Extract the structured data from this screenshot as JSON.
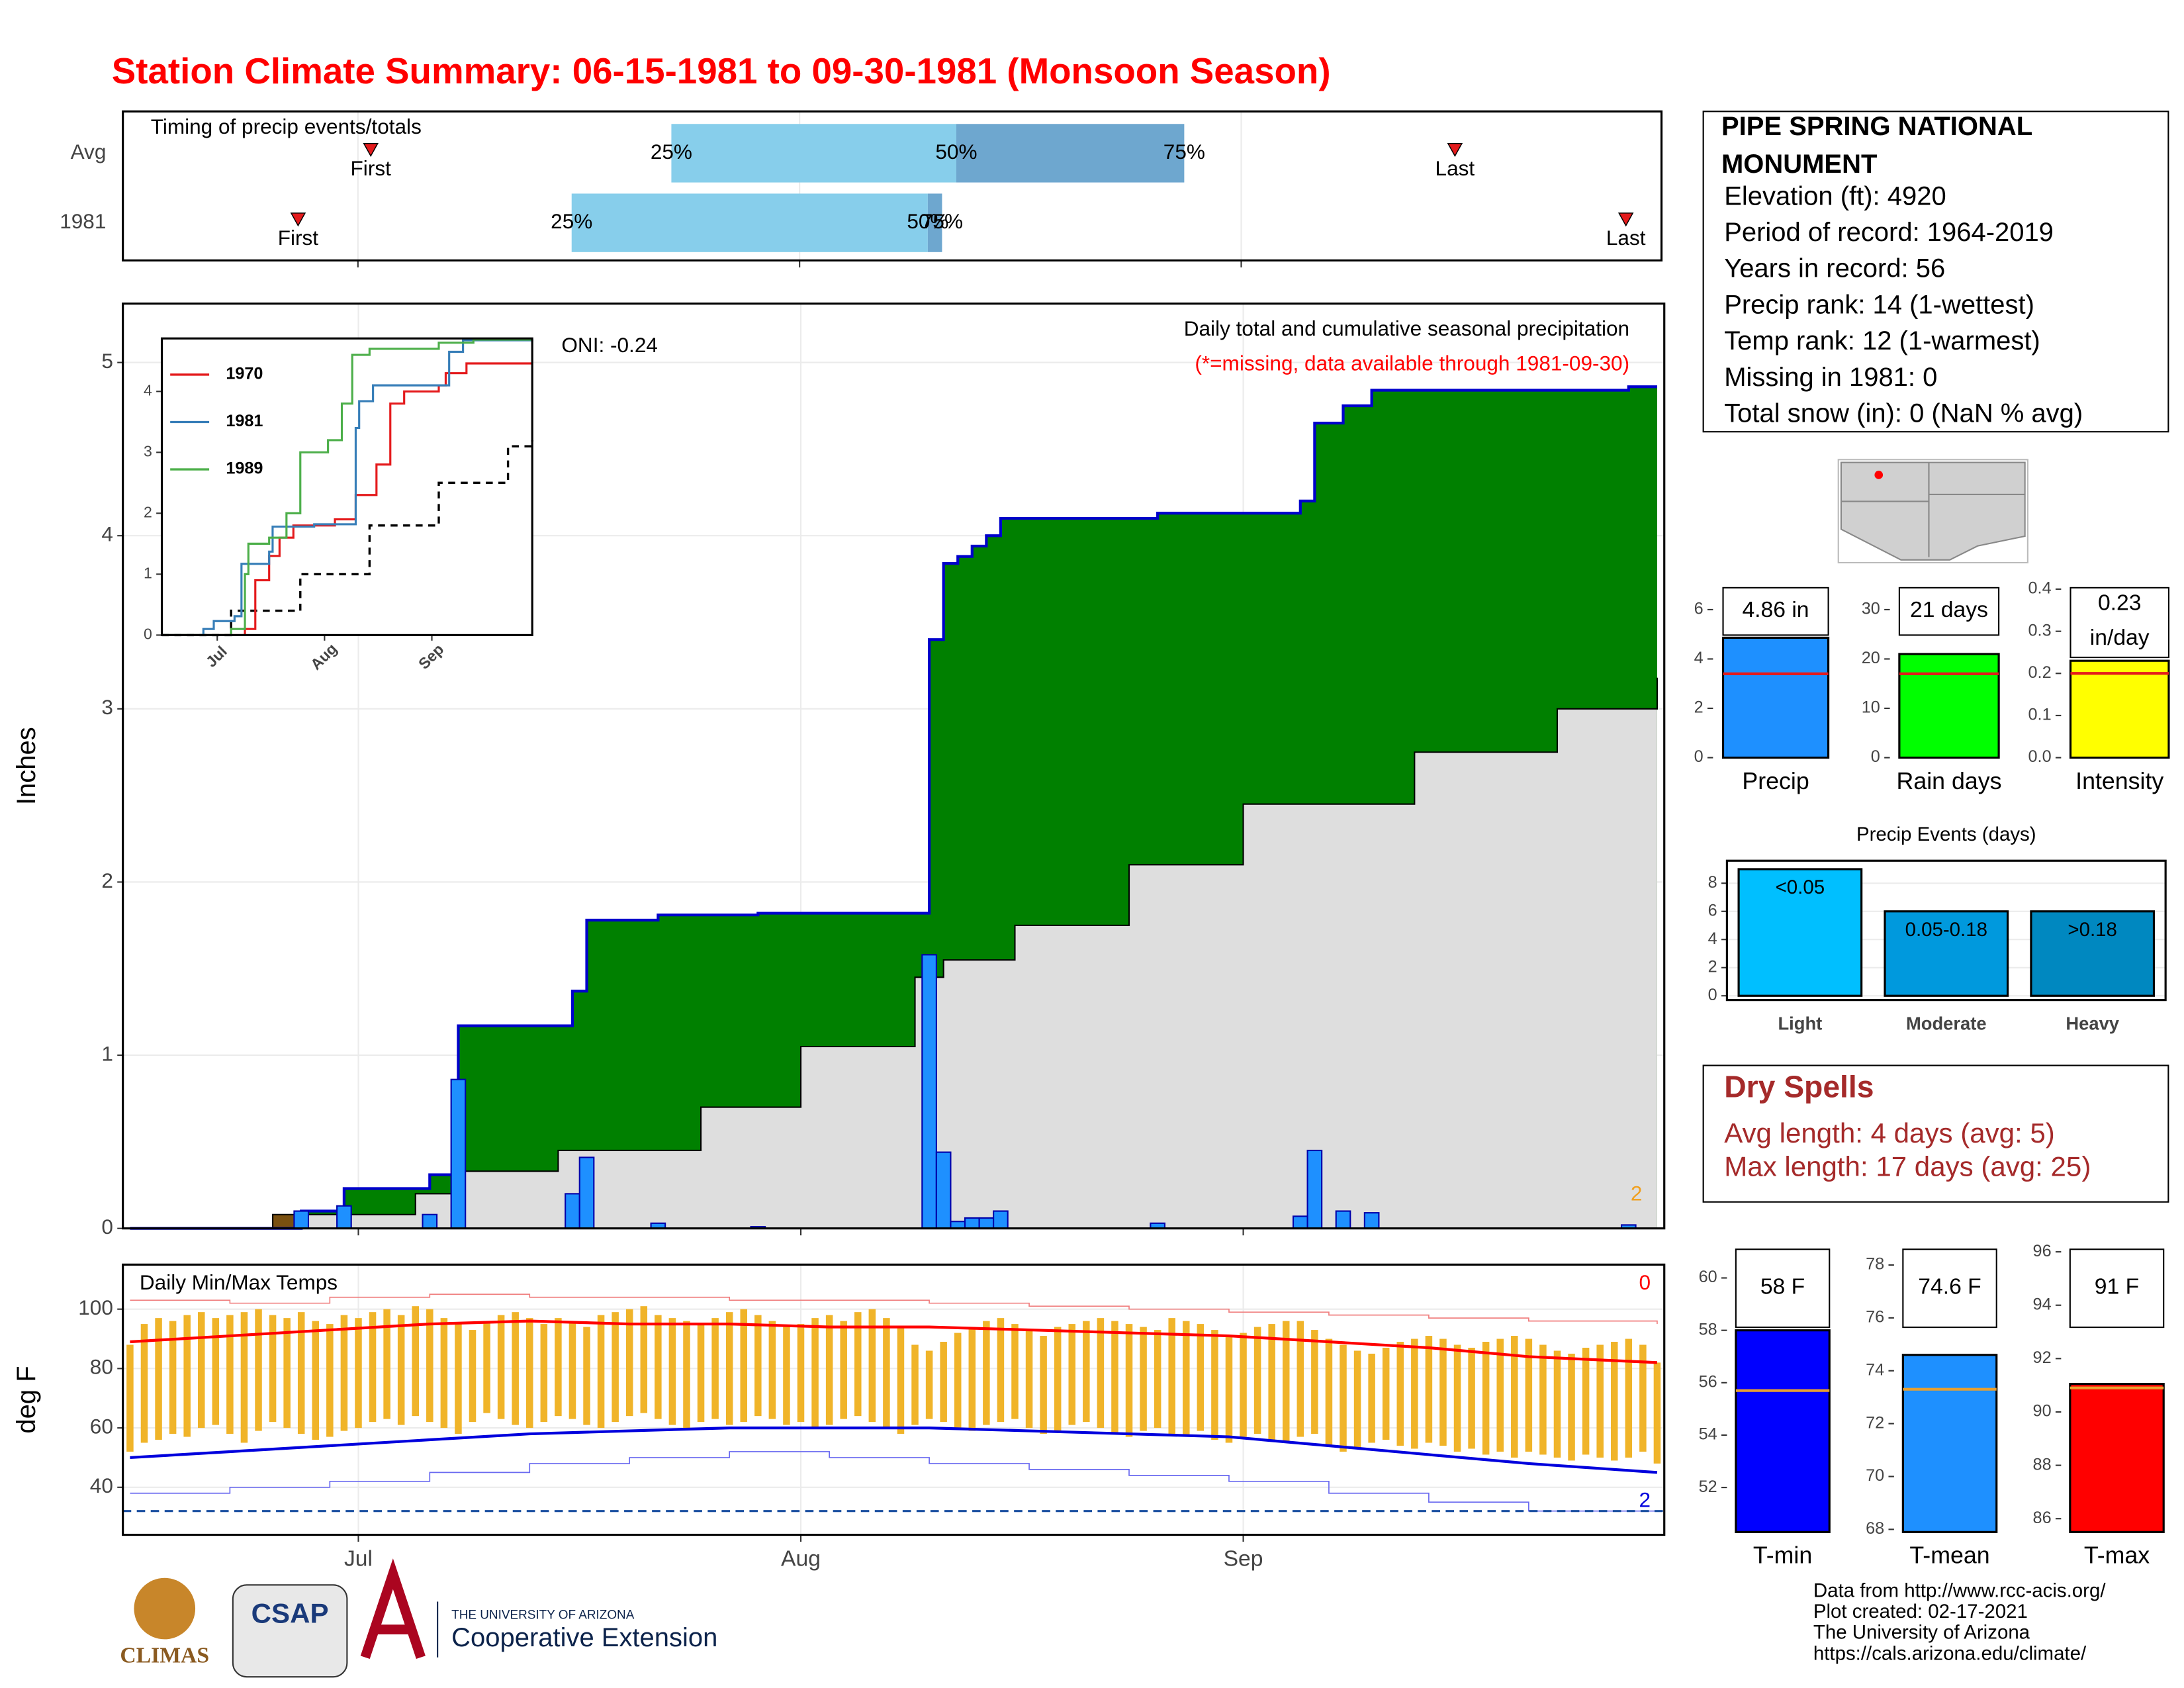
{
  "title": "Station Climate Summary: 06-15-1981 to 09-30-1981 (Monsoon Season)",
  "info": {
    "station": "PIPE SPRING NATIONAL MONUMENT",
    "lines": [
      "Elevation (ft): 4920",
      "Period of record: 1964-2019",
      "Years in record: 56",
      "Precip rank: 14 (1-wettest)",
      "Temp rank: 12 (1-warmest)",
      "Missing in 1981: 0",
      "Total snow (in): 0 (NaN % avg)"
    ]
  },
  "dry_spells": {
    "title": "Dry Spells",
    "lines": [
      "Avg length: 4 days (avg: 5)",
      "Max length: 17 days (avg: 25)"
    ]
  },
  "footer": [
    "Data from http://www.rcc-acis.org/",
    "Plot created: 02-17-2021",
    "The University of Arizona",
    "https://cals.arizona.edu/climate/"
  ],
  "logos": [
    "CLIMAS",
    "CSAP",
    "THE UNIVERSITY OF ARIZONA",
    "Cooperative Extension"
  ],
  "chart_data": [
    {
      "type": "timing",
      "title": "Timing of precip events/totals",
      "categories": [
        "Avg",
        "1981"
      ],
      "first": [
        16.9,
        11.8
      ],
      "q25": [
        38,
        31
      ],
      "q50": [
        58,
        56
      ],
      "q75": [
        74,
        57
      ],
      "last": [
        93,
        105
      ],
      "first_label": "First",
      "last_label": "Last",
      "quantile_labels": [
        "25%",
        "50%",
        "75%"
      ],
      "xlim": [
        -0.5,
        107.5
      ],
      "xgrid": [
        16,
        47,
        78
      ],
      "colors": [
        "#87ceeb",
        "#6ea7cf"
      ]
    },
    {
      "type": "area",
      "ylabel": "Inches",
      "note": "Daily total and cumulative seasonal precipitation",
      "missing_note": "(*=missing, data available through 1981-09-30)",
      "oni": "ONI: -0.24",
      "record_count": 2,
      "xlim": [
        -0.5,
        107.5
      ],
      "ylim": [
        0,
        5.34
      ],
      "yticks": [
        0,
        1,
        2,
        3,
        4,
        5
      ],
      "xgrid": [
        16,
        47,
        78
      ],
      "grid": true,
      "daily": {
        "x": [
          12,
          15,
          21,
          23,
          31,
          32,
          37,
          44,
          56,
          57,
          58,
          59,
          60,
          61,
          72,
          82,
          83,
          85,
          87,
          105
        ],
        "values": [
          0.1,
          0.13,
          0.08,
          0.86,
          0.2,
          0.41,
          0.03,
          0.01,
          1.58,
          0.44,
          0.04,
          0.06,
          0.06,
          0.1,
          0.03,
          0.07,
          0.45,
          0.1,
          0.09,
          0.02
        ],
        "color": "#1e90ff"
      },
      "cumulative": {
        "x": [
          0,
          12,
          15,
          21,
          23,
          31,
          32,
          37,
          44,
          56,
          57,
          58,
          59,
          60,
          61,
          72,
          82,
          83,
          85,
          87,
          105,
          107
        ],
        "values": [
          0,
          0.1,
          0.23,
          0.31,
          1.17,
          1.37,
          1.78,
          1.81,
          1.82,
          3.4,
          3.84,
          3.88,
          3.94,
          4.0,
          4.1,
          4.13,
          4.2,
          4.65,
          4.75,
          4.84,
          4.86,
          4.86
        ],
        "color": "#0000cc"
      },
      "average": {
        "x": [
          0,
          10,
          20,
          23,
          30,
          40,
          47,
          55,
          57,
          62,
          70,
          78,
          90,
          100,
          107
        ],
        "values": [
          0,
          0.08,
          0.2,
          0.33,
          0.45,
          0.7,
          1.05,
          1.45,
          1.55,
          1.75,
          2.1,
          2.45,
          2.75,
          3.0,
          3.18
        ]
      },
      "above_color": "#008000",
      "below_color": "#7a5010",
      "average_fill": "#dedede"
    },
    {
      "type": "line",
      "xlim": [
        0,
        107
      ],
      "ylim": [
        0,
        4.87
      ],
      "yticks": [
        0,
        1,
        2,
        3,
        4
      ],
      "xticks": [
        {
          "value": 16,
          "label": "Jul"
        },
        {
          "value": 47,
          "label": "Aug"
        },
        {
          "value": 78,
          "label": "Sep"
        }
      ],
      "series": [
        {
          "name": "1970",
          "color": "#e41a1c",
          "x": [
            0,
            24,
            27,
            31,
            34,
            38,
            50,
            56,
            62,
            66,
            70,
            80,
            82,
            88,
            107
          ],
          "values": [
            0,
            0.1,
            0.9,
            1.3,
            1.6,
            1.8,
            1.9,
            2.3,
            2.8,
            3.8,
            4.0,
            4.1,
            4.3,
            4.46,
            4.46
          ]
        },
        {
          "name": "1981",
          "color": "#377eb8",
          "x": [
            0,
            12,
            15,
            21,
            23,
            31,
            32,
            44,
            56,
            57,
            61,
            83,
            87,
            107
          ],
          "values": [
            0,
            0.1,
            0.23,
            0.31,
            1.17,
            1.37,
            1.78,
            1.82,
            3.4,
            3.84,
            4.1,
            4.65,
            4.84,
            4.86
          ]
        },
        {
          "name": "1989",
          "color": "#4daf4a",
          "x": [
            0,
            20,
            24,
            25,
            31,
            36,
            40,
            48,
            52,
            55,
            60,
            80,
            90,
            107
          ],
          "values": [
            0,
            0.1,
            1.0,
            1.5,
            1.6,
            2.0,
            3.0,
            3.2,
            3.8,
            4.6,
            4.7,
            4.8,
            4.85,
            4.85
          ]
        }
      ],
      "average": {
        "x": [
          0,
          20,
          40,
          60,
          80,
          100,
          107
        ],
        "values": [
          0,
          0.4,
          1.0,
          1.8,
          2.5,
          3.1,
          3.2
        ]
      }
    },
    {
      "type": "bar",
      "categories": [
        "Precip"
      ],
      "values": [
        4.86
      ],
      "value_labels": [
        "4.86 in"
      ],
      "average": [
        3.4
      ],
      "average_color": "#e41a1c",
      "color": "#1e90ff",
      "ylim": [
        0,
        7
      ],
      "yticks": [
        0,
        2,
        4,
        6
      ]
    },
    {
      "type": "bar",
      "categories": [
        "Rain days"
      ],
      "values": [
        21
      ],
      "value_labels": [
        "21 days"
      ],
      "average": [
        17
      ],
      "average_color": "#e41a1c",
      "color": "#00ff00",
      "ylim": [
        0,
        35
      ],
      "yticks": [
        0,
        10,
        20,
        30
      ]
    },
    {
      "type": "bar",
      "categories": [
        "Intensity"
      ],
      "values": [
        0.23
      ],
      "value_labels": [
        "0.23 in/day"
      ],
      "average": [
        0.2
      ],
      "average_color": "#e41a1c",
      "color": "#ffff00",
      "ylim": [
        0,
        0.41
      ],
      "yticks": [
        {
          "value": 0,
          "label": "0.0"
        },
        0.1,
        0.2,
        0.3,
        0.4
      ]
    },
    {
      "type": "bar",
      "title": "Precip Events (days)",
      "categories": [
        "Light",
        "Moderate",
        "Heavy"
      ],
      "values": [
        9,
        6,
        6
      ],
      "bar_labels": [
        "<0.05",
        "0.05-0.18",
        ">0.18"
      ],
      "colors": [
        "#00bfff",
        "#0099dd",
        "#0088c0"
      ],
      "ylim": [
        -0.3,
        9.6
      ],
      "yticks": [
        0,
        2,
        4,
        6,
        8
      ],
      "grid": true
    },
    {
      "type": "range",
      "title": "Daily Min/Max Temps",
      "ylabel": "deg F",
      "record_high_count": 0,
      "record_low_count": 2,
      "xlim": [
        -0.5,
        107.5
      ],
      "ylim": [
        24,
        115
      ],
      "yticks": [
        40,
        60,
        80,
        100
      ],
      "grid": true,
      "xticks": [
        {
          "value": 16,
          "label": "Jul"
        },
        {
          "value": 47,
          "label": "Aug"
        },
        {
          "value": 78,
          "label": "Sep"
        }
      ],
      "x": [
        0,
        1,
        2,
        3,
        4,
        5,
        6,
        7,
        8,
        9,
        10,
        11,
        12,
        13,
        14,
        15,
        16,
        17,
        18,
        19,
        20,
        21,
        22,
        23,
        24,
        25,
        26,
        27,
        28,
        29,
        30,
        31,
        32,
        33,
        34,
        35,
        36,
        37,
        38,
        39,
        40,
        41,
        42,
        43,
        44,
        45,
        46,
        47,
        48,
        49,
        50,
        51,
        52,
        53,
        54,
        55,
        56,
        57,
        58,
        59,
        60,
        61,
        62,
        63,
        64,
        65,
        66,
        67,
        68,
        69,
        70,
        71,
        72,
        73,
        74,
        75,
        76,
        77,
        78,
        79,
        80,
        81,
        82,
        83,
        84,
        85,
        86,
        87,
        88,
        89,
        90,
        91,
        92,
        93,
        94,
        95,
        96,
        97,
        98,
        99,
        100,
        101,
        102,
        103,
        104,
        105,
        106,
        107
      ],
      "tmax": [
        88,
        95,
        97,
        96,
        98,
        99,
        97,
        98,
        99,
        100,
        98,
        97,
        99,
        96,
        95,
        98,
        97,
        99,
        100,
        98,
        101,
        100,
        97,
        95,
        93,
        96,
        98,
        99,
        97,
        95,
        97,
        96,
        94,
        98,
        99,
        100,
        101,
        98,
        97,
        96,
        95,
        97,
        99,
        100,
        98,
        96,
        94,
        95,
        97,
        98,
        96,
        99,
        100,
        97,
        94,
        88,
        86,
        89,
        92,
        94,
        96,
        97,
        95,
        93,
        91,
        94,
        95,
        96,
        97,
        96,
        95,
        94,
        93,
        97,
        96,
        95,
        93,
        91,
        92,
        94,
        95,
        96,
        96,
        93,
        90,
        88,
        86,
        85,
        87,
        89,
        90,
        91,
        90,
        88,
        87,
        89,
        90,
        91,
        90,
        88,
        86,
        85,
        87,
        88,
        89,
        90,
        88,
        82
      ],
      "tmin": [
        52,
        55,
        56,
        58,
        57,
        60,
        61,
        58,
        55,
        59,
        62,
        60,
        58,
        56,
        57,
        59,
        60,
        62,
        63,
        61,
        64,
        62,
        60,
        58,
        62,
        65,
        63,
        61,
        60,
        62,
        64,
        63,
        61,
        60,
        62,
        64,
        65,
        63,
        61,
        60,
        62,
        63,
        61,
        62,
        64,
        63,
        61,
        62,
        60,
        61,
        63,
        64,
        62,
        60,
        58,
        61,
        63,
        62,
        60,
        59,
        61,
        62,
        63,
        60,
        58,
        59,
        61,
        62,
        60,
        58,
        57,
        59,
        60,
        58,
        57,
        59,
        56,
        55,
        57,
        58,
        56,
        55,
        57,
        58,
        54,
        52,
        53,
        55,
        56,
        54,
        53,
        55,
        54,
        52,
        53,
        51,
        52,
        50,
        52,
        51,
        50,
        49,
        51,
        50,
        49,
        50,
        52,
        48
      ],
      "bar_color": "#f0b429",
      "line_x": [
        0,
        7,
        14,
        21,
        28,
        35,
        42,
        49,
        56,
        63,
        70,
        77,
        84,
        91,
        98,
        107
      ],
      "mean_max": [
        89,
        91,
        93,
        95,
        96,
        95,
        95,
        94,
        94,
        93,
        92,
        91,
        89,
        87,
        84,
        82
      ],
      "mean_min": [
        50,
        52,
        54,
        56,
        58,
        59,
        60,
        60,
        60,
        59,
        58,
        57,
        54,
        51,
        48,
        45
      ],
      "record_max": [
        103,
        102,
        104,
        105,
        104,
        104,
        103,
        103,
        102,
        101,
        100,
        99,
        98,
        97,
        96,
        95
      ],
      "record_min": [
        38,
        40,
        42,
        45,
        48,
        50,
        52,
        50,
        48,
        46,
        44,
        42,
        38,
        35,
        32,
        32
      ],
      "freeze": 32
    },
    {
      "type": "bar",
      "categories": [
        "T-min"
      ],
      "values": [
        58
      ],
      "value_labels": [
        "58 F"
      ],
      "average": [
        55.7
      ],
      "average_color": "#e8a030",
      "color": "#0000ff",
      "ylim": [
        50.3,
        61.2
      ],
      "yticks": [
        52,
        54,
        56,
        58,
        60
      ]
    },
    {
      "type": "bar",
      "categories": [
        "T-mean"
      ],
      "values": [
        74.6
      ],
      "value_labels": [
        "74.6 F"
      ],
      "average": [
        73.3
      ],
      "average_color": "#e8a030",
      "color": "#1e90ff",
      "ylim": [
        67.9,
        78.7
      ],
      "yticks": [
        68,
        70,
        72,
        74,
        76,
        78
      ]
    },
    {
      "type": "bar",
      "categories": [
        "T-max"
      ],
      "values": [
        91.05
      ],
      "value_labels": [
        "91 F"
      ],
      "average": [
        90.9
      ],
      "average_color": "#e8a030",
      "color": "#ff0000",
      "ylim": [
        85.5,
        96.2
      ],
      "yticks": [
        86,
        88,
        90,
        92,
        94,
        96
      ]
    }
  ]
}
